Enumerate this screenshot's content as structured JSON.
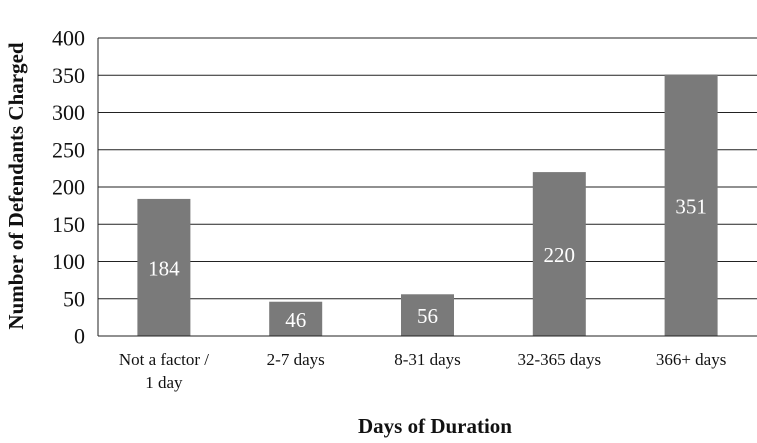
{
  "chart_data": {
    "type": "bar",
    "categories": [
      [
        "Not a factor /",
        "1 day"
      ],
      [
        "2-7 days"
      ],
      [
        "8-31 days"
      ],
      [
        "32-365 days"
      ],
      [
        "366+ days"
      ]
    ],
    "values": [
      184,
      46,
      56,
      220,
      351
    ],
    "data_labels": [
      "184",
      "46",
      "56",
      "220",
      "351"
    ],
    "xlabel": "Days of Duration",
    "ylabel": "Number of Defendants Charged",
    "ylim": [
      0,
      400
    ],
    "yticks": [
      0,
      50,
      100,
      150,
      200,
      250,
      300,
      350,
      400
    ],
    "ytick_labels": [
      "0",
      "50",
      "100",
      "150",
      "200",
      "250",
      "300",
      "350",
      "400"
    ],
    "grid": true,
    "colors": {
      "bar": "#7a7a7a",
      "grid": "#222222",
      "label": "#ffffff"
    }
  }
}
